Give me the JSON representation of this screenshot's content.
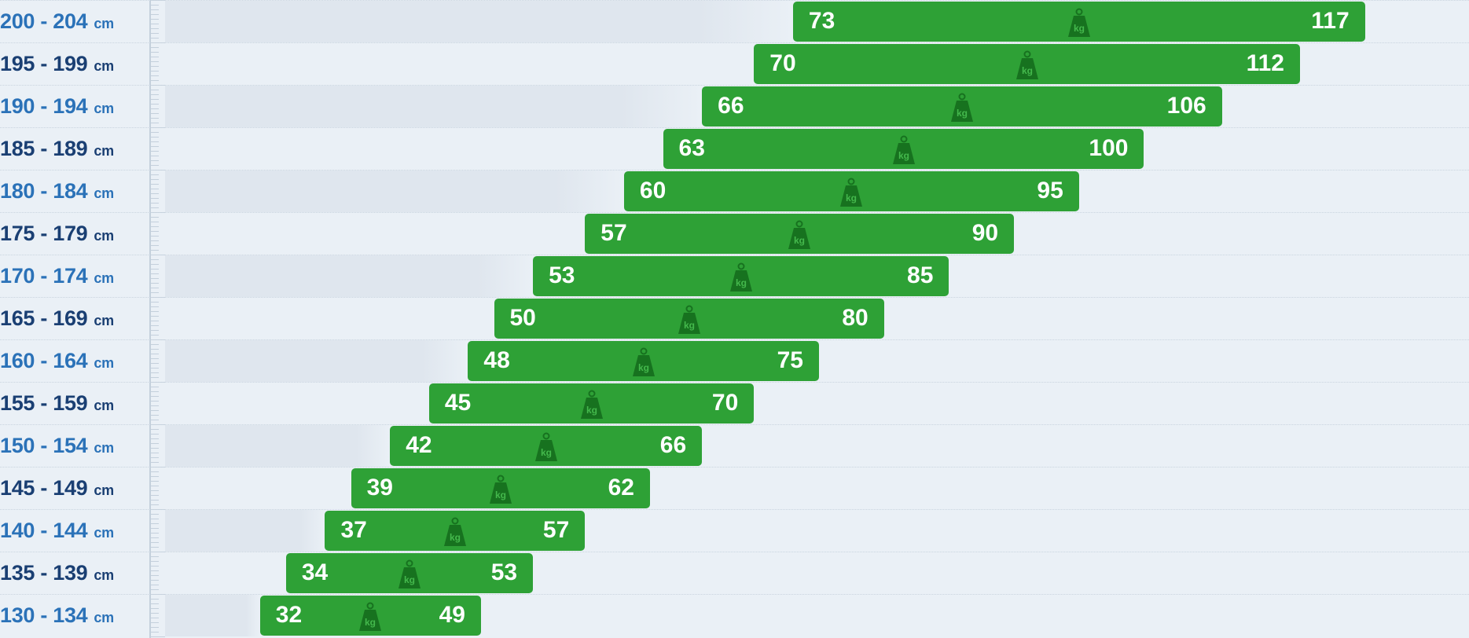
{
  "colors": {
    "background": "#eaf0f6",
    "bar": "#2ea136",
    "bar_text": "#ffffff",
    "row_shade": "#dfe6ee",
    "label_dark": "#1a3f73",
    "label_light": "#2b72b8",
    "icon": "#17721f",
    "ruler": "#c4d0dc"
  },
  "icon": "kg-weight-icon",
  "icon_text": "kg",
  "unit": "cm",
  "chart_data": {
    "type": "bar",
    "orientation": "horizontal",
    "subtype": "floating-range",
    "categories": [
      "200 - 204",
      "195 - 199",
      "190 - 194",
      "185 - 189",
      "180 - 184",
      "175 - 179",
      "170 - 174",
      "165 - 169",
      "160 - 164",
      "155 - 159",
      "150 - 154",
      "145 - 149",
      "140 - 144",
      "135 - 139",
      "130 - 134"
    ],
    "category_unit": "cm",
    "value_unit": "kg",
    "series": [
      {
        "values": [
          73,
          70,
          66,
          63,
          60,
          57,
          53,
          50,
          48,
          45,
          42,
          39,
          37,
          34,
          32
        ]
      },
      {
        "values": [
          117,
          112,
          106,
          100,
          95,
          90,
          85,
          80,
          75,
          70,
          66,
          62,
          57,
          53,
          49
        ]
      }
    ],
    "xlim": [
      12,
      125
    ],
    "grid": false,
    "legend": false,
    "title": "",
    "xlabel": "",
    "ylabel": ""
  }
}
